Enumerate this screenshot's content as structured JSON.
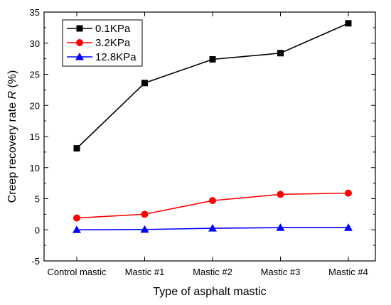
{
  "chart_data": {
    "type": "line",
    "xlabel": "Type of asphalt mastic",
    "ylabel": "Creep recovery rate R (%)",
    "ylabel_parts": {
      "before": "Creep recovery rate ",
      "italic": "R",
      "after": " (%)"
    },
    "categories": [
      "Control mastic",
      "Mastic #1",
      "Mastic #2",
      "Mastic #3",
      "Mastic #4"
    ],
    "ylim": [
      -5,
      35
    ],
    "yticks": [
      -5,
      0,
      5,
      10,
      15,
      20,
      25,
      30,
      35
    ],
    "ytick_labels": [
      "-5",
      "0",
      "5",
      "10",
      "15",
      "20",
      "25",
      "30",
      "35"
    ],
    "grid": false,
    "legend_position": "top-left",
    "series": [
      {
        "name": "0.1KPa",
        "color": "#000000",
        "marker": "square",
        "values": [
          13.1,
          23.6,
          27.4,
          28.4,
          33.2
        ]
      },
      {
        "name": "3.2KPa",
        "color": "#ff0000",
        "marker": "circle",
        "values": [
          1.9,
          2.5,
          4.7,
          5.7,
          5.9
        ]
      },
      {
        "name": "12.8KPa",
        "color": "#0000ff",
        "marker": "triangle",
        "values": [
          0.0,
          0.05,
          0.25,
          0.35,
          0.35
        ]
      }
    ]
  }
}
